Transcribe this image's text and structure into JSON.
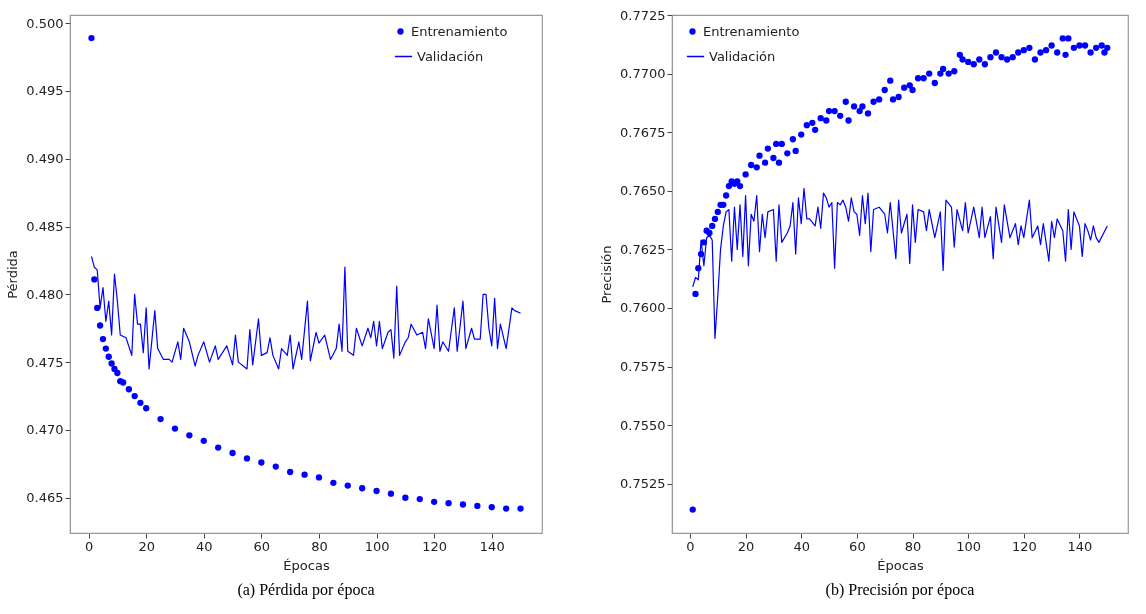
{
  "chart_data": [
    {
      "type": "scatter",
      "title": "(a) Pérdida por época",
      "xlabel": "Épocas",
      "ylabel": "Pérdida",
      "xlim": [
        -6.45,
        157.45
      ],
      "xticks": [
        0,
        20,
        40,
        60,
        80,
        100,
        120,
        140
      ],
      "ylim": [
        0.4624,
        0.5006
      ],
      "yticks": [
        0.465,
        {
          "value": 0.47,
          "label": "0.470"
        },
        0.475,
        {
          "value": 0.48,
          "label": "0.480"
        },
        0.485,
        {
          "value": 0.49,
          "label": "0.490"
        },
        0.495,
        {
          "value": 0.5,
          "label": "0.500"
        }
      ],
      "legend": "top right",
      "series": [
        {
          "name": "Entrenamiento",
          "color": "#0000ff",
          "type": "scatter",
          "marker": "circle",
          "x": [
            1,
            2,
            3,
            4,
            5,
            6,
            7,
            8,
            9,
            10,
            11,
            12,
            14,
            16,
            18,
            20,
            25,
            30,
            35,
            40,
            45,
            50,
            55,
            60,
            65,
            70,
            75,
            80,
            85,
            90,
            95,
            100,
            105,
            110,
            115,
            120,
            125,
            130,
            135,
            140,
            145,
            150
          ],
          "values": [
            0.4989,
            0.4811,
            0.479,
            0.4777,
            0.4767,
            0.476,
            0.4754,
            0.4749,
            0.4745,
            0.4742,
            0.4736,
            0.4735,
            0.473,
            0.4725,
            0.472,
            0.4716,
            0.4708,
            0.4701,
            0.4696,
            0.4692,
            0.4687,
            0.4683,
            0.4679,
            0.4676,
            0.4673,
            0.4669,
            0.4667,
            0.4665,
            0.4661,
            0.4659,
            0.4657,
            0.4655,
            0.4653,
            0.465,
            0.4649,
            0.4647,
            0.4646,
            0.4645,
            0.4644,
            0.4643,
            0.4642,
            0.4642
          ]
        },
        {
          "name": "Validación",
          "color": "#0000ff",
          "type": "line",
          "line_style": "solid",
          "x": [
            1,
            2,
            3,
            4,
            5,
            6,
            7,
            8,
            9,
            10,
            11,
            13,
            15,
            16,
            17,
            18,
            19,
            20,
            21,
            23,
            24,
            26,
            28,
            29,
            31,
            32,
            33,
            35,
            37,
            38,
            40,
            42,
            44,
            45,
            48,
            50,
            51,
            52,
            55,
            56,
            57,
            59,
            60,
            62,
            63,
            64,
            66,
            67,
            69,
            70,
            71,
            73,
            74,
            76,
            77,
            79,
            80,
            82,
            84,
            86,
            87,
            88,
            89,
            90,
            92,
            93,
            95,
            97,
            98,
            99,
            100,
            101,
            102,
            104,
            105,
            106,
            107,
            108,
            110,
            111,
            112,
            114,
            116,
            117,
            118,
            120,
            121,
            122,
            123,
            125,
            127,
            128,
            130,
            131,
            133,
            134,
            136,
            137,
            138,
            139,
            140,
            141,
            142,
            143,
            145,
            147,
            148,
            150
          ],
          "values": [
            0.4828,
            0.482,
            0.4818,
            0.479,
            0.4805,
            0.478,
            0.4795,
            0.477,
            0.4815,
            0.4795,
            0.477,
            0.4768,
            0.4755,
            0.48,
            0.4778,
            0.4778,
            0.4757,
            0.479,
            0.4745,
            0.4788,
            0.476,
            0.4752,
            0.4752,
            0.475,
            0.4765,
            0.4752,
            0.4775,
            0.4765,
            0.4747,
            0.4755,
            0.4765,
            0.475,
            0.4762,
            0.4752,
            0.4762,
            0.4748,
            0.477,
            0.475,
            0.4745,
            0.4774,
            0.4748,
            0.4782,
            0.4755,
            0.4757,
            0.4768,
            0.4755,
            0.4745,
            0.476,
            0.4755,
            0.477,
            0.4745,
            0.4765,
            0.4752,
            0.4795,
            0.4751,
            0.4772,
            0.4764,
            0.477,
            0.4752,
            0.476,
            0.4778,
            0.4758,
            0.482,
            0.4758,
            0.4755,
            0.4775,
            0.4762,
            0.4775,
            0.4768,
            0.478,
            0.4762,
            0.478,
            0.476,
            0.4772,
            0.4774,
            0.4753,
            0.4806,
            0.4755,
            0.4765,
            0.4768,
            0.4778,
            0.477,
            0.4772,
            0.476,
            0.4782,
            0.476,
            0.4792,
            0.4758,
            0.4765,
            0.4758,
            0.479,
            0.4758,
            0.4795,
            0.476,
            0.4775,
            0.4767,
            0.4767,
            0.48,
            0.48,
            0.4775,
            0.4762,
            0.4797,
            0.476,
            0.4778,
            0.476,
            0.479,
            0.4788,
            0.4786
          ]
        }
      ]
    },
    {
      "type": "scatter",
      "title": "(b) Precisión por época",
      "xlabel": "Épocas",
      "ylabel": "Precisión",
      "xlim": [
        -6.45,
        157.45
      ],
      "xticks": [
        0,
        20,
        40,
        60,
        80,
        100,
        120,
        140
      ],
      "ylim": [
        0.7504,
        0.7725
      ],
      "yticks": [
        0.7525,
        {
          "value": 0.755,
          "label": "0.7550"
        },
        0.7575,
        {
          "value": 0.76,
          "label": "0.7600"
        },
        0.7625,
        {
          "value": 0.765,
          "label": "0.7650"
        },
        0.7675,
        {
          "value": 0.77,
          "label": "0.7700"
        },
        0.7725
      ],
      "legend": "top left",
      "series": [
        {
          "name": "Entrenamiento",
          "color": "#0000ff",
          "type": "scatter",
          "marker": "circle",
          "x": [
            1,
            2,
            3,
            4,
            5,
            6,
            7,
            8,
            9,
            10,
            11,
            12,
            13,
            14,
            15,
            16,
            17,
            18,
            20,
            22,
            24,
            25,
            27,
            28,
            30,
            31,
            32,
            33,
            35,
            37,
            38,
            40,
            42,
            44,
            45,
            47,
            49,
            50,
            52,
            54,
            56,
            57,
            59,
            61,
            62,
            64,
            66,
            68,
            70,
            72,
            73,
            75,
            77,
            79,
            80,
            82,
            84,
            86,
            88,
            90,
            91,
            93,
            95,
            97,
            98,
            100,
            102,
            104,
            106,
            108,
            110,
            112,
            114,
            116,
            118,
            120,
            122,
            124,
            126,
            128,
            130,
            132,
            134,
            135,
            136,
            138,
            140,
            142,
            144,
            146,
            148,
            149,
            150
          ],
          "values": [
            0.7514,
            0.7606,
            0.7617,
            0.7623,
            0.7628,
            0.7633,
            0.7632,
            0.7635,
            0.7638,
            0.7641,
            0.7644,
            0.7644,
            0.7648,
            0.7652,
            0.7654,
            0.7653,
            0.7654,
            0.7652,
            0.7657,
            0.7661,
            0.766,
            0.7665,
            0.7662,
            0.7668,
            0.7664,
            0.767,
            0.7662,
            0.767,
            0.7666,
            0.7672,
            0.7667,
            0.7674,
            0.7678,
            0.7679,
            0.7676,
            0.7681,
            0.768,
            0.7684,
            0.7684,
            0.7682,
            0.7688,
            0.768,
            0.7686,
            0.7684,
            0.7686,
            0.7683,
            0.7688,
            0.7689,
            0.7693,
            0.7697,
            0.7689,
            0.769,
            0.7694,
            0.7695,
            0.7693,
            0.7698,
            0.7698,
            0.77,
            0.7696,
            0.77,
            0.7702,
            0.77,
            0.7701,
            0.7708,
            0.7706,
            0.7705,
            0.7704,
            0.7706,
            0.7704,
            0.7707,
            0.7709,
            0.7707,
            0.7706,
            0.7707,
            0.7709,
            0.771,
            0.7711,
            0.7706,
            0.7709,
            0.771,
            0.7712,
            0.7709,
            0.7715,
            0.7708,
            0.7715,
            0.7711,
            0.7712,
            0.7712,
            0.7709,
            0.7711,
            0.7712,
            0.7709,
            0.7711
          ]
        },
        {
          "name": "Validación",
          "color": "#0000ff",
          "type": "line",
          "line_style": "solid",
          "x": [
            1,
            2,
            3,
            4,
            5,
            6,
            7,
            8,
            9,
            10,
            11,
            12,
            13,
            14,
            15,
            16,
            17,
            18,
            19,
            20,
            21,
            22,
            23,
            24,
            25,
            26,
            27,
            28,
            30,
            31,
            32,
            33,
            35,
            36,
            37,
            38,
            39,
            40,
            41,
            42,
            43,
            45,
            46,
            47,
            48,
            49,
            50,
            51,
            52,
            53,
            54,
            55,
            56,
            57,
            58,
            59,
            60,
            61,
            62,
            63,
            64,
            65,
            66,
            68,
            70,
            71,
            72,
            74,
            75,
            76,
            78,
            79,
            80,
            81,
            82,
            84,
            85,
            86,
            88,
            90,
            91,
            92,
            94,
            95,
            96,
            98,
            99,
            100,
            102,
            104,
            105,
            106,
            108,
            109,
            110,
            112,
            113,
            115,
            117,
            118,
            119,
            120,
            122,
            123,
            125,
            126,
            127,
            129,
            130,
            131,
            132,
            134,
            135,
            136,
            137,
            138,
            140,
            141,
            142,
            143,
            144,
            145,
            146,
            147,
            150
          ],
          "values": [
            0.7609,
            0.7613,
            0.7612,
            0.7629,
            0.7618,
            0.763,
            0.7631,
            0.7629,
            0.7587,
            0.7605,
            0.7625,
            0.7635,
            0.7641,
            0.7642,
            0.762,
            0.7643,
            0.7625,
            0.7644,
            0.7622,
            0.7648,
            0.7618,
            0.764,
            0.7637,
            0.7648,
            0.7624,
            0.764,
            0.763,
            0.7641,
            0.7642,
            0.762,
            0.7644,
            0.7628,
            0.7632,
            0.7635,
            0.7645,
            0.7623,
            0.7647,
            0.7636,
            0.7651,
            0.7638,
            0.7638,
            0.7635,
            0.7643,
            0.7634,
            0.7649,
            0.7647,
            0.7643,
            0.7645,
            0.7617,
            0.7645,
            0.7644,
            0.7646,
            0.7643,
            0.7637,
            0.7647,
            0.7641,
            0.764,
            0.7631,
            0.7648,
            0.7636,
            0.7649,
            0.7624,
            0.7642,
            0.7643,
            0.764,
            0.7632,
            0.7645,
            0.7621,
            0.7646,
            0.7632,
            0.764,
            0.7619,
            0.7644,
            0.7628,
            0.7642,
            0.7641,
            0.7633,
            0.7642,
            0.763,
            0.7641,
            0.7616,
            0.7646,
            0.7643,
            0.7626,
            0.7642,
            0.7633,
            0.7645,
            0.7632,
            0.7643,
            0.763,
            0.7643,
            0.763,
            0.7639,
            0.7621,
            0.7643,
            0.7628,
            0.7644,
            0.763,
            0.7636,
            0.7627,
            0.7635,
            0.763,
            0.7646,
            0.763,
            0.7635,
            0.7627,
            0.7636,
            0.762,
            0.7637,
            0.763,
            0.7638,
            0.7633,
            0.762,
            0.7642,
            0.7625,
            0.7641,
            0.7635,
            0.7622,
            0.7636,
            0.7633,
            0.7629,
            0.7635,
            0.763,
            0.7628,
            0.7635
          ]
        }
      ]
    }
  ]
}
